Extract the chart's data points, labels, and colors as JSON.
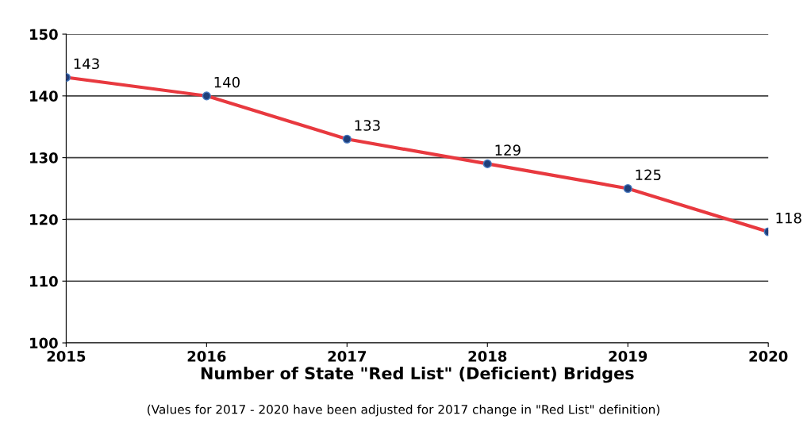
{
  "chart_data": {
    "type": "line",
    "xlabel": "Number of State \"Red List\" (Deficient) Bridges",
    "annotations": [
      "(Values for 2017 - 2020 have been adjusted for 2017 change in \"Red List\" definition)"
    ],
    "x": [
      2015,
      2016,
      2017,
      2018,
      2019,
      2020
    ],
    "series": [
      {
        "color": "#e8393f",
        "values": [
          143,
          140,
          133,
          129,
          125,
          118
        ]
      }
    ],
    "xlim": [
      2015,
      2020
    ],
    "xticks": [
      2015,
      2016,
      2017,
      2018,
      2019,
      2020
    ],
    "ylim": [
      100,
      150
    ],
    "yticks": [
      100,
      110,
      120,
      130,
      140,
      150
    ],
    "grid": "y",
    "marker": "circle",
    "line_style": "solid",
    "data_labels": true
  }
}
